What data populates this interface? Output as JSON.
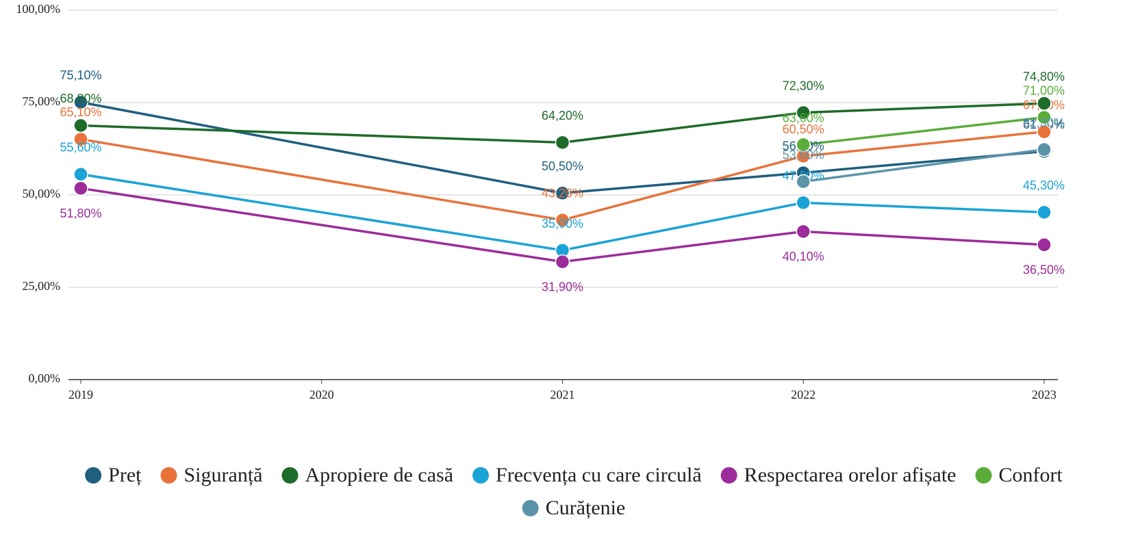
{
  "chart_data": {
    "type": "line",
    "x": [
      2019,
      2021,
      2022,
      2023
    ],
    "xlim": [
      2019,
      2023
    ],
    "xticks": [
      2019,
      2020,
      2021,
      2022,
      2023
    ],
    "ylim": [
      0,
      100
    ],
    "yticks": [
      {
        "value": 0,
        "label": "0,00%"
      },
      {
        "value": 25,
        "label": "25,00%"
      },
      {
        "value": 50,
        "label": "50,00%"
      },
      {
        "value": 75,
        "label": "75,00%"
      },
      {
        "value": 100,
        "label": "100,00%"
      }
    ],
    "grid": true,
    "legend": "bottom",
    "series": [
      {
        "name": "Preț",
        "color": "#1f5f7f",
        "values": [
          75.1,
          50.5,
          56.0,
          61.8
        ],
        "value_labels": [
          "75,10%",
          "50,50%",
          "56,00%",
          "61,80%"
        ]
      },
      {
        "name": "Siguranță",
        "color": "#e8733a",
        "values": [
          65.1,
          43.2,
          60.5,
          67.1
        ],
        "value_labels": [
          "65,10%",
          "43,20%",
          "60,50%",
          "67,10%"
        ]
      },
      {
        "name": "Apropiere de casă",
        "color": "#1e6b2a",
        "values": [
          68.8,
          64.2,
          72.3,
          74.8
        ],
        "value_labels": [
          "68,80%",
          "64,20%",
          "72,30%",
          "74,80%"
        ]
      },
      {
        "name": "Frecvența cu care circulă",
        "color": "#1aa3d6",
        "values": [
          55.6,
          35.0,
          47.9,
          45.3
        ],
        "value_labels": [
          "55,60%",
          "35,00%",
          "47,90%",
          "45,30%"
        ]
      },
      {
        "name": "Respectarea orelor afișate",
        "color": "#9c2c9a",
        "values": [
          51.8,
          31.9,
          40.1,
          36.5
        ],
        "value_labels": [
          "51,80%",
          "31,90%",
          "40,10%",
          "36,50%"
        ]
      },
      {
        "name": "Confort",
        "color": "#5aad3a",
        "values": [
          null,
          null,
          63.6,
          71.0
        ],
        "value_labels": [
          null,
          null,
          "63,60%",
          "71,00%"
        ]
      },
      {
        "name": "Curățenie",
        "color": "#5b93a8",
        "values": [
          null,
          null,
          53.6,
          62.3
        ],
        "value_labels": [
          null,
          null,
          "53,60%",
          "62,30%"
        ]
      }
    ]
  }
}
